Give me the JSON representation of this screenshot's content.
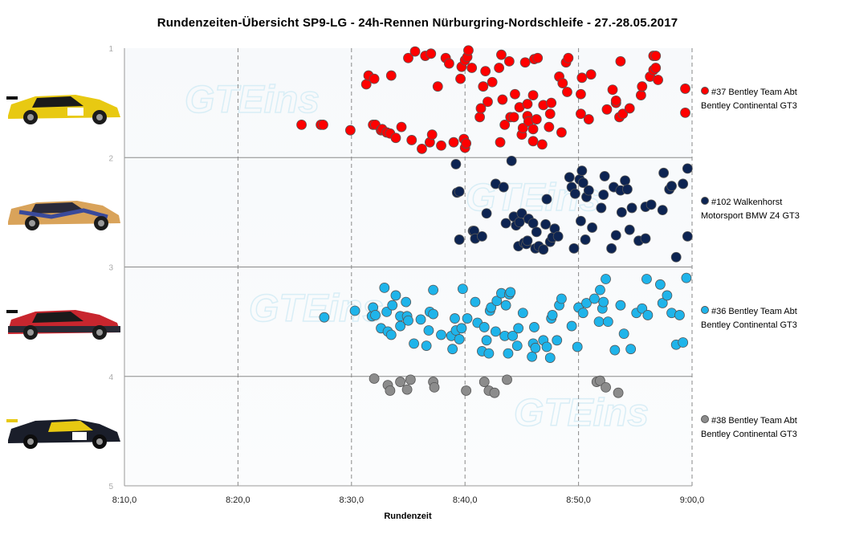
{
  "chart_data": {
    "type": "scatter",
    "title": "Rundenzeiten-Übersicht  SP9-LG  - 24h-Rennen  Nürburgring-Nordschleife  - 27.-28.05.2017",
    "xlabel": "Rundenzeit",
    "ylabel": "",
    "x_range_seconds": [
      490,
      540
    ],
    "x_ticks": [
      "8:10,0",
      "8:20,0",
      "8:30,0",
      "8:40,0",
      "8:50,0",
      "9:00,0"
    ],
    "y_ticks": [
      "1",
      "2",
      "3",
      "4",
      "5"
    ],
    "ylim": [
      1,
      5
    ],
    "grid": "vertical dashed, horizontal solid at 2, 3, 4",
    "legend_position": "right",
    "background_watermark": "GTEins",
    "series": [
      {
        "name": "#37 Bentley Team Abt Bentley Continental GT3",
        "color": "#ff0000",
        "row": 1,
        "x": [
          505.6,
          507.3,
          507.5,
          509.9,
          511.3,
          511.5,
          511.9,
          512.0,
          512.1,
          512.6,
          512.7,
          513.1,
          513.4,
          513.5,
          513.9,
          514.4,
          515.0,
          515.3,
          515.6,
          516.2,
          516.5,
          516.9,
          517.0,
          517.1,
          517.6,
          517.9,
          518.3,
          518.6,
          519.0,
          519.6,
          519.7,
          519.9,
          520.0,
          520.0,
          520.1,
          520.2,
          520.3,
          520.6,
          521.3,
          521.4,
          521.6,
          521.8,
          522.0,
          522.4,
          523.0,
          523.1,
          523.2,
          523.3,
          523.5,
          523.9,
          524.0,
          524.3,
          524.4,
          524.8,
          525.0,
          525.1,
          525.3,
          525.5,
          525.5,
          525.6,
          526.0,
          526.0,
          526.0,
          526.1,
          526.3,
          526.4,
          526.8,
          526.9,
          527.4,
          527.5,
          527.6,
          528.3,
          528.5,
          528.6,
          528.9,
          529.0,
          529.1,
          530.2,
          530.2,
          530.3,
          530.9,
          531.1,
          532.5,
          533.0,
          533.3,
          533.3,
          533.6,
          533.7,
          533.9,
          534.5,
          535.5,
          535.6,
          536.3,
          536.6,
          536.6,
          536.8,
          536.8,
          537.0,
          539.4
        ],
        "y": [
          1.7,
          1.7,
          1.7,
          1.75,
          1.33,
          1.25,
          1.7,
          1.28,
          1.7,
          1.75,
          1.74,
          1.77,
          1.78,
          1.25,
          1.82,
          1.72,
          1.09,
          1.84,
          1.03,
          1.92,
          1.07,
          1.86,
          1.05,
          1.79,
          1.35,
          1.89,
          1.09,
          1.14,
          1.86,
          1.28,
          1.17,
          1.83,
          1.91,
          1.11,
          1.87,
          1.08,
          1.02,
          1.18,
          1.63,
          1.55,
          1.35,
          1.21,
          1.49,
          1.31,
          1.18,
          1.86,
          1.06,
          1.47,
          1.7,
          1.12,
          1.63,
          1.63,
          1.42,
          1.54,
          1.79,
          1.73,
          1.13,
          1.62,
          1.51,
          1.67,
          1.74,
          1.43,
          1.85,
          1.1,
          1.65,
          1.09,
          1.88,
          1.52,
          1.72,
          1.6,
          1.5,
          1.26,
          1.77,
          1.32,
          1.13,
          1.4,
          1.09,
          1.42,
          1.6,
          1.27,
          1.65,
          1.24,
          1.56,
          1.38,
          1.5,
          1.48,
          1.63,
          1.12,
          1.6,
          1.55,
          1.43,
          1.35,
          1.26,
          1.07,
          1.2,
          1.18,
          1.07,
          1.29,
          1.59
        ],
        "x_more": [
          539.4
        ],
        "y_more": [
          1.37
        ]
      },
      {
        "name": "#102 Walkenhorst Motorsport BMW Z4 GT3",
        "color": "#0d2452",
        "row": 2,
        "x": [
          519.2,
          519.3,
          519.5,
          519.5,
          520.7,
          520.8,
          520.9,
          521.5,
          521.9,
          522.7,
          523.4,
          523.6,
          524.1,
          524.3,
          524.5,
          524.7,
          524.8,
          525.0,
          525.2,
          525.4,
          525.5,
          525.6,
          526.0,
          526.2,
          526.3,
          526.5,
          526.9,
          527.1,
          527.2,
          527.5,
          527.7,
          527.9,
          528.2,
          529.2,
          529.4,
          529.6,
          529.7,
          530.1,
          530.2,
          530.3,
          530.4,
          530.6,
          530.7,
          530.9,
          531.2,
          532.0,
          532.2,
          532.3,
          532.9,
          533.1,
          533.3,
          533.7,
          533.8,
          534.1,
          534.3,
          534.5,
          534.7,
          535.3,
          535.9,
          535.9,
          536.4,
          537.4,
          537.5,
          538.0,
          538.2,
          538.6,
          539.2,
          539.6
        ],
        "y": [
          2.06,
          2.32,
          2.31,
          2.75,
          2.67,
          2.67,
          2.74,
          2.72,
          2.51,
          2.24,
          2.27,
          2.6,
          2.03,
          2.54,
          2.62,
          2.81,
          2.59,
          2.51,
          2.78,
          2.79,
          2.76,
          2.56,
          2.6,
          2.83,
          2.68,
          2.81,
          2.84,
          2.61,
          2.38,
          2.77,
          2.73,
          2.65,
          2.72,
          2.18,
          2.27,
          2.83,
          2.33,
          2.2,
          2.58,
          2.12,
          2.23,
          2.75,
          2.36,
          2.3,
          2.64,
          2.46,
          2.34,
          2.17,
          2.83,
          2.27,
          2.71,
          2.3,
          2.5,
          2.21,
          2.29,
          2.66,
          2.46,
          2.76,
          2.74,
          2.45,
          2.43,
          2.48,
          2.14,
          2.29,
          2.26,
          2.91,
          2.24,
          2.1
        ],
        "x_more": [
          539.6
        ],
        "y_more": [
          2.72
        ]
      },
      {
        "name": "#36 Bentley Team Abt Bentley Continental GT3",
        "color": "#1fb4ea",
        "row": 3,
        "x": [
          507.6,
          510.3,
          511.8,
          511.9,
          512.1,
          512.6,
          512.9,
          513.1,
          513.2,
          513.5,
          513.6,
          513.9,
          514.3,
          514.3,
          514.8,
          514.9,
          515.0,
          515.5,
          516.1,
          516.6,
          516.8,
          516.9,
          517.2,
          517.2,
          517.9,
          518.8,
          518.9,
          519.1,
          519.2,
          519.5,
          519.7,
          519.8,
          520.2,
          520.9,
          521.1,
          521.5,
          521.7,
          521.9,
          522.1,
          522.2,
          522.3,
          522.7,
          522.8,
          523.2,
          523.5,
          523.6,
          523.8,
          523.9,
          524.0,
          524.2,
          524.6,
          524.7,
          525.1,
          525.9,
          526.0,
          526.1,
          526.2,
          526.9,
          527.2,
          527.5,
          527.6,
          527.7,
          528.1,
          528.3,
          528.5,
          529.4,
          529.9,
          530.0,
          530.4,
          530.7,
          531.4,
          531.8,
          531.9,
          532.1,
          532.2,
          532.4,
          532.6,
          533.2,
          533.7,
          534.0,
          534.6,
          535.1,
          535.6,
          536.0,
          536.1,
          537.2,
          537.4,
          537.8,
          538.2
        ],
        "y": [
          3.46,
          3.4,
          3.45,
          3.37,
          3.44,
          3.56,
          3.19,
          3.41,
          3.59,
          3.62,
          3.35,
          3.26,
          3.45,
          3.54,
          3.32,
          3.45,
          3.49,
          3.7,
          3.48,
          3.72,
          3.58,
          3.41,
          3.43,
          3.21,
          3.62,
          3.63,
          3.75,
          3.47,
          3.58,
          3.66,
          3.56,
          3.2,
          3.47,
          3.32,
          3.51,
          3.77,
          3.55,
          3.67,
          3.79,
          3.4,
          3.37,
          3.59,
          3.31,
          3.24,
          3.63,
          3.35,
          3.79,
          3.25,
          3.23,
          3.63,
          3.72,
          3.56,
          3.42,
          3.82,
          3.7,
          3.55,
          3.74,
          3.67,
          3.73,
          3.83,
          3.47,
          3.44,
          3.67,
          3.35,
          3.29,
          3.54,
          3.73,
          3.37,
          3.42,
          3.33,
          3.29,
          3.5,
          3.21,
          3.38,
          3.32,
          3.11,
          3.5,
          3.76,
          3.35,
          3.61,
          3.75,
          3.42,
          3.38,
          3.11,
          3.44,
          3.16,
          3.33,
          3.26,
          3.42
        ],
        "x_more": [
          538.6,
          538.9,
          539.2,
          539.5
        ],
        "y_more": [
          3.71,
          3.44,
          3.69,
          3.1
        ]
      },
      {
        "name": "#38 Bentley Team Abt Bentley Continental GT3",
        "color": "#8c8c8c",
        "row": 4,
        "x": [
          512.0,
          513.2,
          513.4,
          514.3,
          514.9,
          515.2,
          517.2,
          517.3,
          520.1,
          521.7,
          522.1,
          522.6,
          523.7,
          531.6,
          531.9,
          532.4,
          533.5
        ],
        "y": [
          4.02,
          4.08,
          4.13,
          4.05,
          4.12,
          4.03,
          4.05,
          4.1,
          4.13,
          4.05,
          4.13,
          4.15,
          4.03,
          4.05,
          4.04,
          4.1,
          4.15
        ]
      }
    ]
  }
}
